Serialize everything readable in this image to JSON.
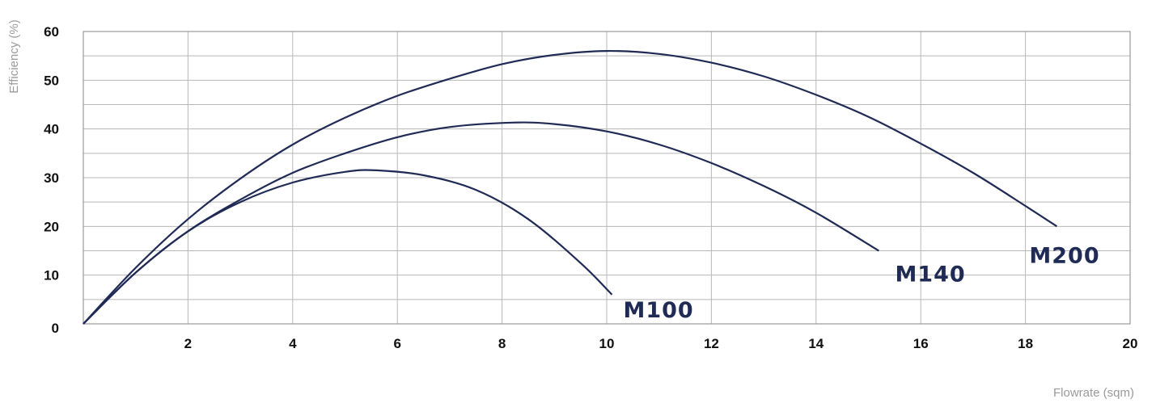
{
  "chart_data": {
    "type": "line",
    "title": "",
    "xlabel": "Flowrate (sqm)",
    "ylabel": "Efficiency (%)",
    "xlim": [
      0,
      20
    ],
    "ylim": [
      0,
      60
    ],
    "x_ticks": [
      "2",
      "4",
      "6",
      "8",
      "10",
      "12",
      "14",
      "16",
      "18",
      "20"
    ],
    "y_ticks": [
      "0",
      "10",
      "20",
      "30",
      "40",
      "50",
      "60"
    ],
    "grid": true,
    "series": [
      {
        "name": "M100",
        "color": "#1f2a55",
        "x": [
          0,
          1,
          2,
          3,
          4,
          5,
          5.6,
          6.5,
          7.5,
          8.5,
          9.5,
          10.1
        ],
        "y": [
          0,
          10.5,
          19,
          25,
          29,
          31.2,
          31.5,
          30.5,
          27.5,
          21.5,
          12.5,
          6
        ]
      },
      {
        "name": "M140",
        "color": "#1f2a55",
        "x": [
          0,
          1,
          2,
          3,
          4,
          5,
          6,
          7,
          8.2,
          9,
          10,
          11,
          12,
          13,
          14,
          15.2
        ],
        "y": [
          0,
          10.5,
          19,
          25.5,
          31,
          35,
          38.3,
          40.4,
          41.3,
          41,
          39.5,
          36.8,
          33,
          28.3,
          22.8,
          15
        ]
      },
      {
        "name": "M200",
        "color": "#1f2a55",
        "x": [
          0,
          1,
          2,
          3,
          4,
          5,
          6,
          7,
          8,
          9,
          10,
          11,
          12,
          13,
          14,
          15,
          16,
          17,
          18,
          18.6
        ],
        "y": [
          0,
          11.5,
          21.5,
          29.8,
          36.8,
          42.3,
          46.8,
          50.3,
          53.3,
          55.2,
          56,
          55.4,
          53.6,
          50.8,
          47,
          42.5,
          37,
          31,
          24.2,
          20
        ]
      }
    ]
  }
}
